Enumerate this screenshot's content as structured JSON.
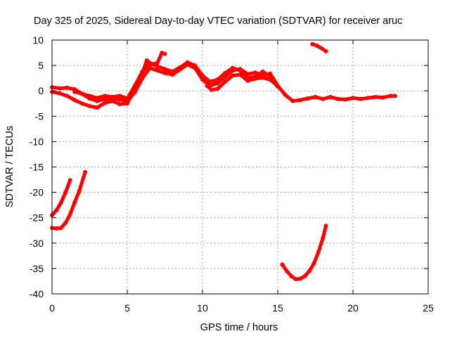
{
  "chart_data": {
    "type": "line",
    "title": "Day 325 of 2025, Sidereal Day-to-day VTEC variation (SDTVAR) for receiver aruc",
    "xlabel": "GPS time / hours",
    "ylabel": "SDTVAR / TECUs",
    "xlim": [
      0,
      25
    ],
    "ylim": [
      -40,
      10
    ],
    "xticks": [
      0,
      5,
      10,
      15,
      20,
      25
    ],
    "yticks": [
      -40,
      -35,
      -30,
      -25,
      -20,
      -15,
      -10,
      -5,
      0,
      5,
      10
    ],
    "grid": true,
    "legend": "none",
    "series_color": "#ff0000",
    "series": [
      {
        "name": "track-main-a",
        "points": [
          [
            0.0,
            0.7
          ],
          [
            0.5,
            0.5
          ],
          [
            1.0,
            0.6
          ],
          [
            1.5,
            0.3
          ],
          [
            2.0,
            -0.6
          ],
          [
            2.5,
            -1.5
          ],
          [
            3.0,
            -2.0
          ],
          [
            3.5,
            -1.6
          ],
          [
            4.0,
            -1.4
          ],
          [
            4.5,
            -1.7
          ],
          [
            5.0,
            -2.0
          ],
          [
            5.5,
            -0.3
          ],
          [
            6.0,
            2.5
          ],
          [
            6.5,
            4.5
          ],
          [
            7.0,
            4.0
          ],
          [
            7.5,
            3.5
          ],
          [
            8.0,
            3.2
          ],
          [
            8.5,
            4.2
          ],
          [
            9.0,
            5.2
          ],
          [
            9.5,
            4.5
          ],
          [
            10.0,
            2.2
          ],
          [
            10.5,
            1.0
          ],
          [
            11.0,
            1.5
          ],
          [
            11.5,
            2.8
          ],
          [
            12.0,
            4.0
          ],
          [
            12.5,
            4.3
          ],
          [
            13.0,
            3.3
          ],
          [
            13.5,
            3.6
          ],
          [
            14.0,
            3.0
          ],
          [
            14.5,
            3.4
          ],
          [
            15.0,
            1.0
          ],
          [
            15.5,
            -0.8
          ],
          [
            16.0,
            -2.0
          ],
          [
            16.5,
            -1.8
          ],
          [
            17.0,
            -1.5
          ],
          [
            17.5,
            -1.2
          ],
          [
            18.0,
            -1.6
          ],
          [
            18.5,
            -1.2
          ],
          [
            19.0,
            -1.6
          ],
          [
            19.5,
            -1.7
          ],
          [
            20.0,
            -1.4
          ],
          [
            20.5,
            -1.6
          ],
          [
            21.0,
            -1.4
          ],
          [
            21.5,
            -1.2
          ],
          [
            22.0,
            -1.3
          ],
          [
            22.5,
            -1.0
          ],
          [
            22.8,
            -1.0
          ]
        ]
      },
      {
        "name": "track-main-b",
        "points": [
          [
            0.0,
            -0.2
          ],
          [
            0.5,
            -0.5
          ],
          [
            1.0,
            -1.0
          ],
          [
            1.5,
            -1.8
          ],
          [
            2.0,
            -2.5
          ],
          [
            2.5,
            -3.0
          ],
          [
            3.0,
            -3.3
          ],
          [
            3.5,
            -2.4
          ],
          [
            4.0,
            -2.0
          ],
          [
            4.5,
            -2.6
          ],
          [
            5.0,
            -2.5
          ],
          [
            5.5,
            0.5
          ],
          [
            6.0,
            3.5
          ],
          [
            6.3,
            6.0
          ],
          [
            6.6,
            5.2
          ],
          [
            7.0,
            5.5
          ],
          [
            7.3,
            7.5
          ],
          [
            7.5,
            7.3
          ]
        ]
      },
      {
        "name": "track-main-c",
        "points": [
          [
            1.5,
            -0.2
          ],
          [
            2.0,
            -0.6
          ],
          [
            2.5,
            -1.0
          ],
          [
            3.0,
            -1.4
          ],
          [
            3.5,
            -1.0
          ],
          [
            4.0,
            -1.2
          ],
          [
            4.5,
            -1.0
          ],
          [
            5.0,
            -1.5
          ],
          [
            5.5,
            1.0
          ],
          [
            6.0,
            3.8
          ],
          [
            6.5,
            5.5
          ],
          [
            7.0,
            4.8
          ],
          [
            7.5,
            4.3
          ],
          [
            8.0,
            3.8
          ],
          [
            8.5,
            4.6
          ],
          [
            9.0,
            5.6
          ],
          [
            9.5,
            5.0
          ],
          [
            10.0,
            3.0
          ],
          [
            10.5,
            1.8
          ],
          [
            11.0,
            2.2
          ],
          [
            11.5,
            3.5
          ],
          [
            12.0,
            4.5
          ],
          [
            12.5,
            4.0
          ],
          [
            13.0,
            2.5
          ],
          [
            13.5,
            2.8
          ],
          [
            14.0,
            3.8
          ],
          [
            14.5,
            2.8
          ],
          [
            15.0,
            0.8
          ]
        ]
      },
      {
        "name": "track-main-d",
        "points": [
          [
            10.3,
            1.0
          ],
          [
            10.6,
            0.2
          ],
          [
            11.0,
            0.4
          ],
          [
            11.5,
            1.8
          ],
          [
            12.0,
            3.0
          ],
          [
            12.5,
            3.2
          ],
          [
            13.0,
            2.0
          ],
          [
            13.5,
            2.4
          ],
          [
            14.0,
            2.6
          ],
          [
            14.5,
            2.2
          ],
          [
            14.9,
            1.2
          ]
        ]
      },
      {
        "name": "track-high",
        "points": [
          [
            17.3,
            9.2
          ],
          [
            17.6,
            8.9
          ],
          [
            17.9,
            8.4
          ],
          [
            18.2,
            7.8
          ]
        ]
      },
      {
        "name": "track-low-a",
        "points": [
          [
            0.0,
            -24.5
          ],
          [
            0.3,
            -23.5
          ],
          [
            0.6,
            -22.0
          ],
          [
            0.9,
            -20.0
          ],
          [
            1.2,
            -17.6
          ]
        ]
      },
      {
        "name": "track-low-b",
        "points": [
          [
            0.0,
            -27.0
          ],
          [
            0.3,
            -27.1
          ],
          [
            0.6,
            -27.0
          ],
          [
            0.9,
            -26.0
          ],
          [
            1.2,
            -24.3
          ],
          [
            1.5,
            -22.0
          ],
          [
            1.8,
            -19.8
          ],
          [
            2.2,
            -16.0
          ]
        ]
      },
      {
        "name": "track-low-c",
        "points": [
          [
            15.3,
            -34.2
          ],
          [
            15.6,
            -35.5
          ],
          [
            15.9,
            -36.5
          ],
          [
            16.2,
            -37.1
          ],
          [
            16.5,
            -37.0
          ],
          [
            16.8,
            -36.5
          ],
          [
            17.1,
            -35.5
          ],
          [
            17.4,
            -34.0
          ],
          [
            17.7,
            -31.8
          ],
          [
            18.0,
            -29.0
          ],
          [
            18.2,
            -26.6
          ]
        ]
      }
    ]
  }
}
